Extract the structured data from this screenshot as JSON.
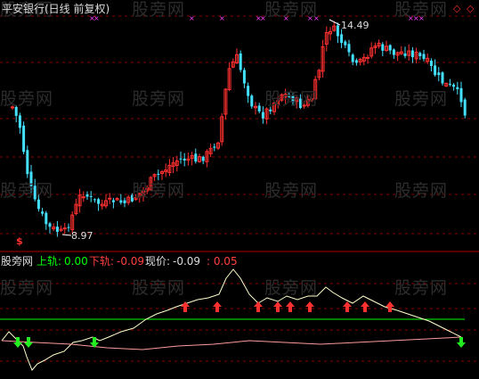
{
  "header": {
    "title": "平安银行(日线 前复权)",
    "title_color": "#dddddd"
  },
  "main_chart": {
    "high_label": "14.49",
    "low_label": "8.97",
    "signal_mark": "$",
    "price_range": [
      8.6,
      15.1
    ]
  },
  "indicator": {
    "name": "股旁网",
    "upper_label": "上轨:",
    "upper_value": "0.00",
    "lower_label": "下轨:",
    "lower_value": "-0.09",
    "current_label": "现价:",
    "current_value": "-0.09",
    "extra_value": ": 0.05",
    "colors": {
      "upper": "#00ff00",
      "lower": "#ff4040",
      "current": "#dddddd",
      "extra": "#ff4040",
      "line_white": "#ffffcc",
      "line_pink": "#ff9a9a"
    }
  },
  "watermark": "股旁网",
  "icons": {
    "top_right_1": "diamond-outline-icon",
    "top_right_2": "diamond-outline-icon"
  },
  "colors": {
    "up": "#ff3030",
    "down": "#44e0ff",
    "grid": "#8b0000",
    "ma": "#ffffff"
  }
}
